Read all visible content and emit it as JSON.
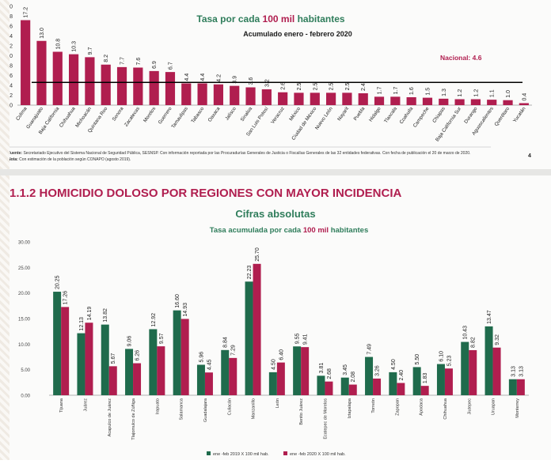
{
  "top_chart": {
    "title_prefix": "Tasa por cada",
    "title_highlight": "100 mil",
    "title_suffix": "habitantes",
    "subtitle": "Acumulado enero - febrero 2020",
    "national_label": "Nacional:",
    "national_value_text": "4.6",
    "source_label": "Fuente:",
    "source_text": "Secretariado Ejecutivo del Sistema Nacional de Seguridad Pública, SESNSP. Con información reportada por las Procuradurías Generales de Justicia o Fiscalías Generales de las 32 entidades federativas. Con fecha de publicación el 20 de marzo de 2020.",
    "note_label": "Nota:",
    "note_text": "Con estimación de la población según CONAPO (agosto 2019).",
    "page_number": "4",
    "colors": {
      "bar": "#b01e4f",
      "reference_line": "#000000",
      "title_green": "#2f7d5b",
      "title_red": "#b01e4f"
    }
  },
  "bottom_chart": {
    "section_title": "1.1.2 HOMICIDIO DOLOSO POR REGIONES CON MAYOR INCIDENCIA",
    "title": "Cifras absolutas",
    "subtitle_prefix": "Tasa acumulada por cada",
    "subtitle_highlight": "100 mil",
    "subtitle_suffix": "habitantes",
    "colors": {
      "series_2019": "#1f6b4c",
      "series_2020": "#b01e4f"
    }
  },
  "chart_data": [
    {
      "type": "bar",
      "categories": [
        "Colima",
        "Guanajuato",
        "Baja California",
        "Chihuahua",
        "Michoacán",
        "Quintana Roo",
        "Sonora",
        "Zacatecas",
        "Morelos",
        "Guerrero",
        "Tamaulipas",
        "Tabasco",
        "Oaxaca",
        "Jalisco",
        "Sinaloa",
        "San Luis Potosí",
        "Veracruz",
        "México",
        "Ciudad de México",
        "Nuevo León",
        "Nayarit",
        "Puebla",
        "Hidalgo",
        "Tlaxcala",
        "Coahuila",
        "Campeche",
        "Chiapas",
        "Baja California Sur",
        "Durango",
        "Aguascalientes",
        "Querétaro",
        "Yucatán"
      ],
      "values": [
        17.2,
        13.0,
        10.8,
        10.3,
        9.7,
        8.2,
        7.7,
        7.6,
        6.9,
        6.7,
        4.4,
        4.4,
        4.2,
        3.9,
        3.6,
        3.2,
        2.6,
        2.5,
        2.5,
        2.5,
        2.5,
        2.4,
        1.7,
        1.7,
        1.6,
        1.5,
        1.3,
        1.2,
        1.2,
        1.1,
        1.0,
        0.4
      ],
      "labels": [
        "17.2",
        "13.0",
        "10.8",
        "10.3",
        "9.7",
        "8.2",
        "7.7",
        "7.6",
        "6.9",
        "6.7",
        "4.4",
        "4.4",
        "4.2",
        "3.9",
        "3.6",
        "3.2",
        "2.6",
        "2.5",
        "2.5",
        "2.5",
        "2.5",
        "2.4",
        "1.7",
        "1.7",
        "1.6",
        "1.5",
        "1.3",
        "1.2",
        "1.2",
        "1.1",
        "1.0",
        "0.4"
      ],
      "reference_line": 4.6,
      "ylim": [
        0,
        20
      ],
      "yticks": [
        "0",
        "2",
        "4",
        "6",
        "8",
        "10",
        "12",
        "14",
        "16",
        "18",
        "20"
      ],
      "grid": false,
      "legend": "none"
    },
    {
      "type": "bar",
      "categories": [
        "Tijuana",
        "Juárez",
        "Acapulco de Juárez",
        "Tlajomulco de Zúñiga",
        "Irapuato",
        "Salamanca",
        "Guadalajara",
        "Culiacán",
        "Manzanillo",
        "León",
        "Benito Juárez",
        "Ecatepec de Morelos",
        "Iztapalapa",
        "Torreón",
        "Zapopan",
        "Apodaca",
        "Chihuahua",
        "Jiutepec",
        "Uruapan",
        "Monterrey"
      ],
      "series": [
        {
          "name": "ene -feb 2019 X 100 mil hab.",
          "values": [
            20.25,
            12.13,
            13.82,
            9.06,
            12.92,
            16.6,
            5.96,
            8.84,
            22.23,
            4.5,
            9.55,
            3.81,
            3.45,
            7.49,
            4.5,
            5.5,
            6.1,
            10.43,
            13.47,
            3.13
          ],
          "labels": [
            "20.25",
            "12.13",
            "13.82",
            "9.06",
            "12.92",
            "16.60",
            "5.96",
            "8.84",
            "22.23",
            "4.50",
            "9.55",
            "3.81",
            "3.45",
            "7.49",
            "4.50",
            "5.50",
            "6.10",
            "10.43",
            "13.47",
            "3.13"
          ]
        },
        {
          "name": "ene -feb 2020 X 100 mil hab.",
          "values": [
            17.26,
            14.19,
            5.67,
            6.26,
            9.57,
            14.93,
            4.45,
            7.29,
            25.7,
            6.4,
            9.41,
            2.68,
            2.08,
            3.26,
            2.4,
            1.83,
            5.23,
            8.82,
            9.32,
            3.13
          ],
          "labels": [
            "17.26",
            "14.19",
            "5.67",
            "6.26",
            "9.57",
            "14.93",
            "4.45",
            "7.29",
            "25.70",
            "6.40",
            "9.41",
            "2.68",
            "2.08",
            "3.26",
            "2.40",
            "1.83",
            "5.23",
            "8.82",
            "9.32",
            "3.13"
          ]
        }
      ],
      "ylim": [
        0,
        30
      ],
      "yticks": [
        "0.00",
        "5.00",
        "10.00",
        "15.00",
        "20.00",
        "25.00",
        "30.00"
      ],
      "grid": false,
      "legend": "bottom"
    }
  ]
}
